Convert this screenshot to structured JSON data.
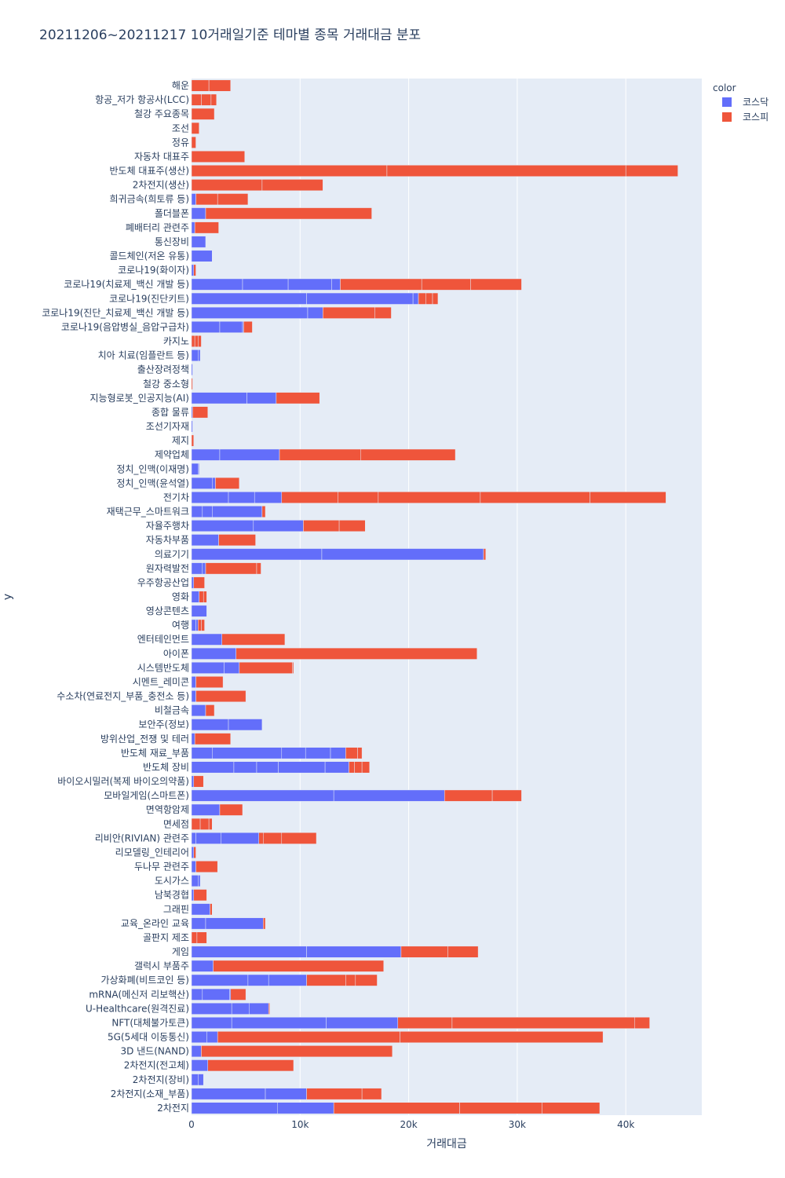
{
  "chart_data": {
    "type": "bar",
    "orientation": "horizontal",
    "barmode": "stack",
    "title": "20211206~20211217 10거래일기준 테마별 종목 거래대금 분포",
    "xlabel": "거래대금",
    "ylabel": "y",
    "xlim": [
      0,
      47000
    ],
    "x_ticks": [
      {
        "value": 0,
        "label": "0"
      },
      {
        "value": 10000,
        "label": "10k"
      },
      {
        "value": 20000,
        "label": "20k"
      },
      {
        "value": 30000,
        "label": "30k"
      },
      {
        "value": 40000,
        "label": "40k"
      }
    ],
    "grid": true,
    "legend": {
      "title": "color",
      "position": "top-right"
    },
    "series": [
      {
        "name": "코스닥",
        "color": "#636efa"
      },
      {
        "name": "코스피",
        "color": "#ef553b"
      }
    ],
    "categories": [
      {
        "label": "해운",
        "segments": [
          [
            1,
            1600
          ],
          [
            1,
            2000
          ]
        ]
      },
      {
        "label": "항공_저가 항공사(LCC)",
        "segments": [
          [
            1,
            900
          ],
          [
            1,
            900
          ],
          [
            1,
            500
          ]
        ]
      },
      {
        "label": "철강 주요종목",
        "segments": [
          [
            1,
            2100
          ]
        ]
      },
      {
        "label": "조선",
        "segments": [
          [
            1,
            700
          ]
        ]
      },
      {
        "label": "정유",
        "segments": [
          [
            1,
            400
          ]
        ]
      },
      {
        "label": "자동차 대표주",
        "segments": [
          [
            1,
            4900
          ]
        ]
      },
      {
        "label": "반도체 대표주(생산)",
        "segments": [
          [
            1,
            18000
          ],
          [
            1,
            22000
          ],
          [
            1,
            4800
          ]
        ]
      },
      {
        "label": "2차전지(생산)",
        "segments": [
          [
            1,
            6500
          ],
          [
            1,
            5600
          ]
        ]
      },
      {
        "label": "희귀금속(희토류 등)",
        "segments": [
          [
            0,
            400
          ],
          [
            1,
            2000
          ],
          [
            1,
            2800
          ]
        ]
      },
      {
        "label": "폴더블폰",
        "segments": [
          [
            0,
            1300
          ],
          [
            1,
            15300
          ]
        ]
      },
      {
        "label": "폐배터리 관련주",
        "segments": [
          [
            0,
            300
          ],
          [
            1,
            2200
          ]
        ]
      },
      {
        "label": "통신장비",
        "segments": [
          [
            0,
            1300
          ]
        ]
      },
      {
        "label": "콜드체인(저온 유통)",
        "segments": [
          [
            0,
            1900
          ]
        ]
      },
      {
        "label": "코로나19(화이자)",
        "segments": [
          [
            0,
            200
          ],
          [
            1,
            200
          ]
        ]
      },
      {
        "label": "코로나19(치료제_백신 개발 등)",
        "segments": [
          [
            0,
            4700
          ],
          [
            0,
            4200
          ],
          [
            0,
            4000
          ],
          [
            0,
            800
          ],
          [
            1,
            7500
          ],
          [
            1,
            4500
          ],
          [
            1,
            4700
          ]
        ]
      },
      {
        "label": "코로나19(진단키트)",
        "segments": [
          [
            0,
            10600
          ],
          [
            0,
            9800
          ],
          [
            0,
            500
          ],
          [
            1,
            700
          ],
          [
            1,
            600
          ],
          [
            1,
            500
          ]
        ]
      },
      {
        "label": "코로나19(진단_치료제_백신 개발 등)",
        "segments": [
          [
            0,
            10700
          ],
          [
            0,
            1400
          ],
          [
            1,
            4800
          ],
          [
            1,
            1500
          ]
        ]
      },
      {
        "label": "코로나19(음압병실_음압구급차)",
        "segments": [
          [
            0,
            2600
          ],
          [
            0,
            2100
          ],
          [
            0,
            100
          ],
          [
            1,
            800
          ]
        ]
      },
      {
        "label": "카지노",
        "segments": [
          [
            1,
            300
          ],
          [
            1,
            300
          ],
          [
            1,
            300
          ]
        ]
      },
      {
        "label": "치아 치료(임플란트 등)",
        "segments": [
          [
            0,
            600
          ],
          [
            0,
            200
          ]
        ]
      },
      {
        "label": "출산장려정책",
        "segments": [
          [
            0,
            100
          ]
        ]
      },
      {
        "label": "철강 중소형",
        "segments": [
          [
            1,
            100
          ]
        ]
      },
      {
        "label": "지능형로봇_인공지능(AI)",
        "segments": [
          [
            0,
            5100
          ],
          [
            0,
            2700
          ],
          [
            1,
            4000
          ]
        ]
      },
      {
        "label": "종합 물류",
        "segments": [
          [
            0,
            100
          ],
          [
            1,
            1400
          ]
        ]
      },
      {
        "label": "조선기자재",
        "segments": [
          [
            0,
            100
          ]
        ]
      },
      {
        "label": "제지",
        "segments": [
          [
            1,
            200
          ]
        ]
      },
      {
        "label": "제약업체",
        "segments": [
          [
            0,
            2600
          ],
          [
            0,
            5500
          ],
          [
            1,
            7500
          ],
          [
            1,
            8700
          ]
        ]
      },
      {
        "label": "정치_인맥(이재명)",
        "segments": [
          [
            0,
            600
          ],
          [
            0,
            100
          ]
        ]
      },
      {
        "label": "정치_인맥(윤석열)",
        "segments": [
          [
            0,
            1900
          ],
          [
            0,
            300
          ],
          [
            1,
            2200
          ]
        ]
      },
      {
        "label": "전기차",
        "segments": [
          [
            0,
            3400
          ],
          [
            0,
            2400
          ],
          [
            0,
            2500
          ],
          [
            1,
            5200
          ],
          [
            1,
            3700
          ],
          [
            1,
            9400
          ],
          [
            1,
            10100
          ],
          [
            1,
            7000
          ]
        ]
      },
      {
        "label": "재택근무_스마트워크",
        "segments": [
          [
            0,
            1000
          ],
          [
            0,
            900
          ],
          [
            0,
            4600
          ],
          [
            1,
            300
          ]
        ]
      },
      {
        "label": "자율주행차",
        "segments": [
          [
            0,
            5700
          ],
          [
            0,
            4600
          ],
          [
            1,
            3300
          ],
          [
            1,
            2400
          ]
        ]
      },
      {
        "label": "자동차부품",
        "segments": [
          [
            0,
            2500
          ],
          [
            1,
            3400
          ]
        ]
      },
      {
        "label": "의료기기",
        "segments": [
          [
            0,
            12000
          ],
          [
            0,
            14900
          ],
          [
            1,
            200
          ]
        ]
      },
      {
        "label": "원자력발전",
        "segments": [
          [
            0,
            1000
          ],
          [
            0,
            300
          ],
          [
            1,
            4700
          ],
          [
            1,
            400
          ]
        ]
      },
      {
        "label": "우주항공산업",
        "segments": [
          [
            0,
            200
          ],
          [
            1,
            1000
          ]
        ]
      },
      {
        "label": "영화",
        "segments": [
          [
            0,
            700
          ],
          [
            1,
            400
          ],
          [
            1,
            300
          ]
        ]
      },
      {
        "label": "영상콘텐츠",
        "segments": [
          [
            0,
            1400
          ]
        ]
      },
      {
        "label": "여행",
        "segments": [
          [
            0,
            400
          ],
          [
            0,
            200
          ],
          [
            1,
            300
          ],
          [
            1,
            300
          ]
        ]
      },
      {
        "label": "엔터테인먼트",
        "segments": [
          [
            0,
            2800
          ],
          [
            1,
            5800
          ]
        ]
      },
      {
        "label": "아이폰",
        "segments": [
          [
            0,
            4100
          ],
          [
            1,
            22200
          ]
        ]
      },
      {
        "label": "시스템반도체",
        "segments": [
          [
            0,
            3000
          ],
          [
            0,
            1400
          ],
          [
            1,
            4900
          ],
          [
            1,
            100
          ]
        ]
      },
      {
        "label": "시멘트_레미콘",
        "segments": [
          [
            0,
            400
          ],
          [
            1,
            2500
          ]
        ]
      },
      {
        "label": "수소차(연료전지_부품_충전소 등)",
        "segments": [
          [
            0,
            400
          ],
          [
            1,
            4600
          ]
        ]
      },
      {
        "label": "비철금속",
        "segments": [
          [
            0,
            1300
          ],
          [
            1,
            800
          ]
        ]
      },
      {
        "label": "보안주(정보)",
        "segments": [
          [
            0,
            3400
          ],
          [
            0,
            3100
          ]
        ]
      },
      {
        "label": "방위산업_전쟁 및 테러",
        "segments": [
          [
            0,
            300
          ],
          [
            1,
            3300
          ]
        ]
      },
      {
        "label": "반도체 재료_부품",
        "segments": [
          [
            0,
            1900
          ],
          [
            0,
            6400
          ],
          [
            0,
            2200
          ],
          [
            0,
            2300
          ],
          [
            0,
            1400
          ],
          [
            1,
            1100
          ],
          [
            1,
            400
          ]
        ]
      },
      {
        "label": "반도체 장비",
        "segments": [
          [
            0,
            3900
          ],
          [
            0,
            2100
          ],
          [
            0,
            2000
          ],
          [
            0,
            4300
          ],
          [
            0,
            2200
          ],
          [
            1,
            500
          ],
          [
            1,
            700
          ],
          [
            1,
            700
          ]
        ]
      },
      {
        "label": "바이오시밀러(복제 바이오의약품)",
        "segments": [
          [
            0,
            200
          ],
          [
            1,
            900
          ]
        ]
      },
      {
        "label": "모바일게임(스마트폰)",
        "segments": [
          [
            0,
            13100
          ],
          [
            0,
            10200
          ],
          [
            1,
            4400
          ],
          [
            1,
            2700
          ]
        ]
      },
      {
        "label": "면역항암제",
        "segments": [
          [
            0,
            2600
          ],
          [
            1,
            2100
          ]
        ]
      },
      {
        "label": "면세점",
        "segments": [
          [
            1,
            800
          ],
          [
            1,
            800
          ],
          [
            1,
            300
          ]
        ]
      },
      {
        "label": "리비안(RIVIAN) 관련주",
        "segments": [
          [
            0,
            400
          ],
          [
            0,
            2300
          ],
          [
            0,
            3500
          ],
          [
            1,
            400
          ],
          [
            1,
            1700
          ],
          [
            1,
            3200
          ]
        ]
      },
      {
        "label": "리모델링_인테리어",
        "segments": [
          [
            0,
            200
          ],
          [
            1,
            200
          ]
        ]
      },
      {
        "label": "두나무 관련주",
        "segments": [
          [
            0,
            400
          ],
          [
            1,
            2000
          ]
        ]
      },
      {
        "label": "도시가스",
        "segments": [
          [
            0,
            600
          ],
          [
            0,
            200
          ]
        ]
      },
      {
        "label": "남북경협",
        "segments": [
          [
            0,
            200
          ],
          [
            1,
            1200
          ]
        ]
      },
      {
        "label": "그래핀",
        "segments": [
          [
            0,
            1700
          ],
          [
            1,
            200
          ]
        ]
      },
      {
        "label": "교육_온라인 교육",
        "segments": [
          [
            0,
            1300
          ],
          [
            0,
            5300
          ],
          [
            1,
            200
          ]
        ]
      },
      {
        "label": "골판지 제조",
        "segments": [
          [
            1,
            500
          ],
          [
            1,
            900
          ]
        ]
      },
      {
        "label": "게임",
        "segments": [
          [
            0,
            10600
          ],
          [
            0,
            8700
          ],
          [
            1,
            4300
          ],
          [
            1,
            2800
          ]
        ]
      },
      {
        "label": "갤럭시 부품주",
        "segments": [
          [
            0,
            2000
          ],
          [
            1,
            15700
          ]
        ]
      },
      {
        "label": "가상화폐(비트코인 등)",
        "segments": [
          [
            0,
            5200
          ],
          [
            0,
            1900
          ],
          [
            0,
            3500
          ],
          [
            1,
            3600
          ],
          [
            1,
            900
          ],
          [
            1,
            2000
          ]
        ]
      },
      {
        "label": "mRNA(메신저 리보핵산)",
        "segments": [
          [
            0,
            1000
          ],
          [
            0,
            2500
          ],
          [
            0,
            100
          ],
          [
            1,
            1400
          ]
        ]
      },
      {
        "label": "U-Healthcare(원격진료)",
        "segments": [
          [
            0,
            3700
          ],
          [
            0,
            1600
          ],
          [
            0,
            1800
          ],
          [
            1,
            100
          ]
        ]
      },
      {
        "label": "NFT(대체불가토큰)",
        "segments": [
          [
            0,
            3700
          ],
          [
            0,
            8700
          ],
          [
            0,
            6600
          ],
          [
            1,
            5000
          ],
          [
            1,
            16800
          ],
          [
            1,
            1400
          ]
        ]
      },
      {
        "label": "5G(5세대 이동통신)",
        "segments": [
          [
            0,
            1400
          ],
          [
            0,
            1000
          ],
          [
            1,
            16800
          ],
          [
            1,
            18700
          ]
        ]
      },
      {
        "label": "3D 낸드(NAND)",
        "segments": [
          [
            0,
            900
          ],
          [
            1,
            17600
          ]
        ]
      },
      {
        "label": "2차전지(전고체)",
        "segments": [
          [
            0,
            1500
          ],
          [
            1,
            7900
          ]
        ]
      },
      {
        "label": "2차전지(장비)",
        "segments": [
          [
            0,
            600
          ],
          [
            0,
            500
          ]
        ]
      },
      {
        "label": "2차전지(소재_부품)",
        "segments": [
          [
            0,
            6800
          ],
          [
            0,
            3800
          ],
          [
            1,
            5100
          ],
          [
            1,
            1800
          ]
        ]
      },
      {
        "label": "2차전지",
        "segments": [
          [
            0,
            7900
          ],
          [
            0,
            5200
          ],
          [
            1,
            11600
          ],
          [
            1,
            7600
          ],
          [
            1,
            5300
          ]
        ]
      }
    ]
  }
}
